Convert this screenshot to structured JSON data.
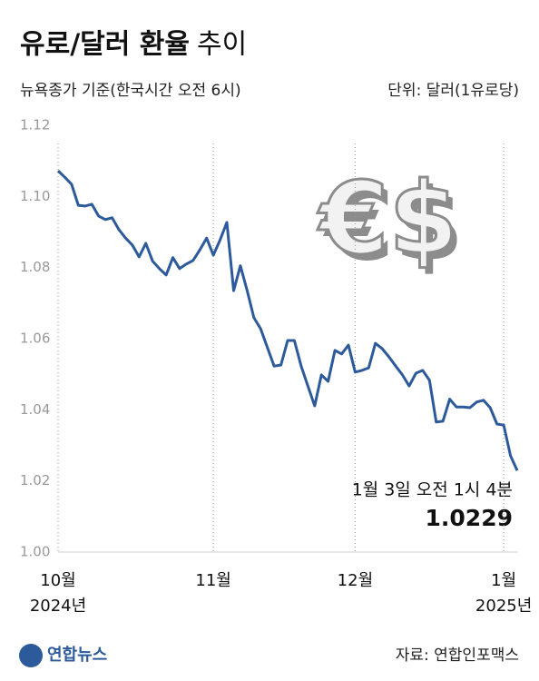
{
  "chart_data": {
    "type": "line",
    "title": "유로/달러 환율",
    "title_light": "추이",
    "subtitle": "뉴욕종가 기준(한국시간 오전 6시)",
    "unit": "단위: 달러(1유로당)",
    "icon_text": "€$",
    "annotation": "1월 3일 오전 1시 4분",
    "end_value_label": "1.0229",
    "source": "자료: 연합인포맥스",
    "logo": "연합뉴스",
    "color": "#2d5a9a",
    "ylim": [
      1.0,
      1.12
    ],
    "yticks": [
      {
        "value": 1.0,
        "label": "1.00"
      },
      1.02,
      1.04,
      1.06,
      1.08,
      {
        "value": 1.1,
        "label": "1.10"
      },
      1.12
    ],
    "categories": [
      "10월",
      null,
      null,
      null,
      null,
      null,
      null,
      null,
      null,
      null,
      null,
      null,
      null,
      null,
      null,
      null,
      null,
      null,
      null,
      null,
      null,
      null,
      null,
      "11월",
      null,
      null,
      null,
      null,
      null,
      null,
      null,
      null,
      null,
      null,
      null,
      null,
      null,
      null,
      null,
      null,
      null,
      null,
      null,
      null,
      "12월",
      null,
      null,
      null,
      null,
      null,
      null,
      null,
      null,
      null,
      null,
      null,
      null,
      null,
      null,
      null,
      null,
      null,
      null,
      null,
      null,
      null,
      "1월",
      null,
      null
    ],
    "category_years": [
      "2024년",
      null,
      null,
      null,
      null,
      null,
      null,
      null,
      null,
      null,
      null,
      null,
      null,
      null,
      null,
      null,
      null,
      null,
      null,
      null,
      null,
      null,
      null,
      null,
      null,
      null,
      null,
      null,
      null,
      null,
      null,
      null,
      null,
      null,
      null,
      null,
      null,
      null,
      null,
      null,
      null,
      null,
      null,
      null,
      null,
      null,
      null,
      null,
      null,
      null,
      null,
      null,
      null,
      null,
      null,
      null,
      null,
      null,
      null,
      null,
      null,
      null,
      null,
      null,
      null,
      null,
      "2025년",
      null,
      null
    ],
    "values": [
      1.1072,
      1.1054,
      1.1034,
      1.0975,
      1.0973,
      1.0978,
      1.0945,
      1.0935,
      1.094,
      1.0907,
      1.0883,
      1.0863,
      1.083,
      1.0868,
      1.0818,
      1.0797,
      1.0779,
      1.0828,
      1.0797,
      1.081,
      1.082,
      1.085,
      1.0883,
      1.0835,
      1.0878,
      1.0927,
      1.0735,
      1.0805,
      1.0735,
      1.0659,
      1.0628,
      1.0575,
      1.0523,
      1.0526,
      1.0595,
      1.0595,
      1.0523,
      1.0467,
      1.0411,
      1.0498,
      1.048,
      1.0567,
      1.0557,
      1.0582,
      1.0506,
      1.0511,
      1.0518,
      1.0587,
      1.0572,
      1.0549,
      1.0523,
      1.0498,
      1.0467,
      1.0503,
      1.0511,
      1.0483,
      1.0366,
      1.0368,
      1.043,
      1.0408,
      1.0408,
      1.0406,
      1.0422,
      1.0427,
      1.0406,
      1.036,
      1.0357,
      1.0271,
      1.0229
    ]
  }
}
